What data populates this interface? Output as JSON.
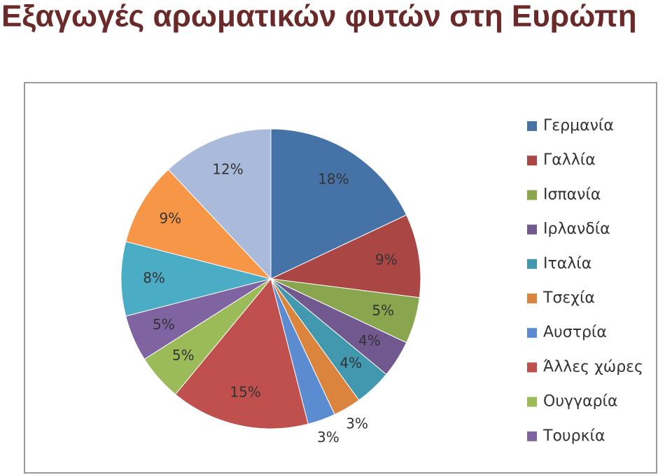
{
  "chart_data": {
    "type": "pie",
    "title": "Εξαγωγές αρωματικών φυτών στη Ευρώπη",
    "categories": [
      "Γερμανία",
      "Γαλλία",
      "Ισπανία",
      "Ιρλανδία",
      "Ιταλία",
      "Τσεχία",
      "Αυστρία",
      "Άλλες χώρες",
      "Ουγγαρία",
      "Τουρκία",
      null,
      null,
      null
    ],
    "values": [
      18,
      9,
      5,
      4,
      4,
      3,
      3,
      15,
      5,
      5,
      8,
      9,
      12
    ],
    "value_labels": [
      "18%",
      "9%",
      "5%",
      "4%",
      "4%",
      "3%",
      "3%",
      "15%",
      "5%",
      "5%",
      "8%",
      "9%",
      "12%"
    ],
    "colors": [
      "#4572A7",
      "#AA4643",
      "#89A54E",
      "#71588F",
      "#4198AF",
      "#DB843D",
      "#5B8BD0",
      "#C0504D",
      "#9BBB59",
      "#8064A2",
      "#4BACC6",
      "#F79646",
      "#A9BADB"
    ],
    "legend": "right"
  }
}
